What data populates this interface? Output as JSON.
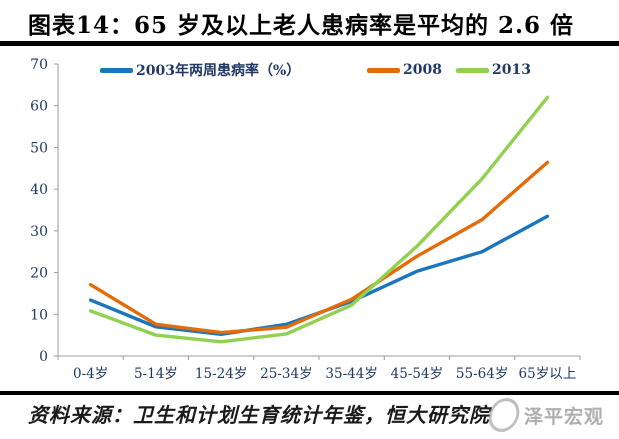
{
  "title": "图表14：65 岁及以上老人患病率是平均的 2.6 倍",
  "source": {
    "label": "资料来源：卫生和计划生育统计年鉴，恒大研究院",
    "watermark": "泽平宏观"
  },
  "chart_data": {
    "type": "line",
    "categories": [
      "0-4岁",
      "5-14岁",
      "15-24岁",
      "25-34岁",
      "35-44岁",
      "45-54岁",
      "55-64岁",
      "65岁以上"
    ],
    "series": [
      {
        "name": "2003年两周患病率（%）",
        "color": "#1B75BC",
        "values": [
          13.4,
          7.0,
          5.2,
          7.6,
          13.1,
          20.3,
          25.0,
          33.5
        ]
      },
      {
        "name": "2008",
        "color": "#E36C09",
        "values": [
          17.1,
          7.6,
          5.6,
          6.9,
          13.6,
          23.9,
          32.7,
          46.4
        ]
      },
      {
        "name": "2013",
        "color": "#92D050",
        "values": [
          10.8,
          5.0,
          3.4,
          5.3,
          12.2,
          26.3,
          42.5,
          62.0
        ]
      }
    ],
    "title": "",
    "xlabel": "",
    "ylabel": "",
    "ylim": [
      0,
      70
    ],
    "yticks": [
      0,
      10,
      20,
      30,
      40,
      50,
      60,
      70
    ],
    "grid": false,
    "legend_position": "top"
  }
}
